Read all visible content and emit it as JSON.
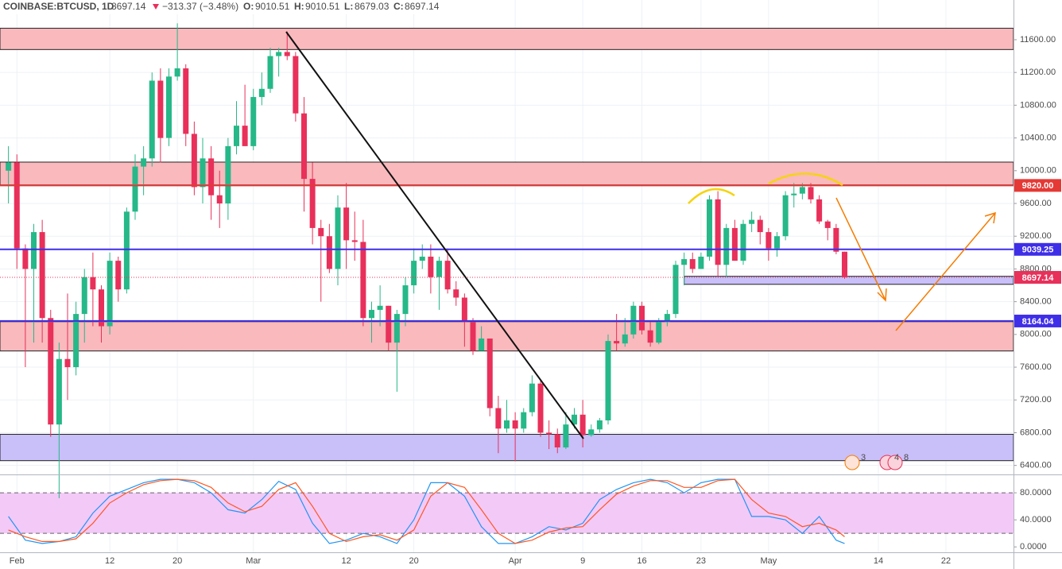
{
  "header": {
    "symbol": "COINBASE:BTCUSD, 1D",
    "price": "8697.14",
    "change": "−313.37 (−3.48%)",
    "o_label": "O:",
    "open": "9010.51",
    "h_label": "H:",
    "high": "9010.51",
    "l_label": "L:",
    "low": "8679.03",
    "c_label": "C:",
    "close": "8697.14"
  },
  "events": [
    {
      "label": "3"
    },
    {
      "label": "4"
    },
    {
      "label": "8"
    }
  ],
  "chart_data": [
    {
      "type": "candlestick",
      "up_color": "#26b888",
      "down_color": "#e8305a",
      "x": [
        "Jan 31",
        "Feb 1",
        "Feb 2",
        "Feb 3",
        "Feb 4",
        "Feb 5",
        "Feb 6",
        "Feb 7",
        "Feb 8",
        "Feb 9",
        "Feb 10",
        "Feb 11",
        "Feb 12",
        "Feb 13",
        "Feb 14",
        "Feb 15",
        "Feb 16",
        "Feb 17",
        "Feb 18",
        "Feb 19",
        "Feb 20",
        "Feb 21",
        "Feb 22",
        "Feb 23",
        "Feb 24",
        "Feb 25",
        "Feb 26",
        "Feb 27",
        "Feb 28",
        "Mar 1",
        "Mar 2",
        "Mar 3",
        "Mar 4",
        "Mar 5",
        "Mar 6",
        "Mar 7",
        "Mar 8",
        "Mar 9",
        "Mar 10",
        "Mar 11",
        "Mar 12",
        "Mar 13",
        "Mar 14",
        "Mar 15",
        "Mar 16",
        "Mar 17",
        "Mar 18",
        "Mar 19",
        "Mar 20",
        "Mar 21",
        "Mar 22",
        "Mar 23",
        "Mar 24",
        "Mar 25",
        "Mar 26",
        "Mar 27",
        "Mar 28",
        "Mar 29",
        "Mar 30",
        "Mar 31",
        "Apr 1",
        "Apr 2",
        "Apr 3",
        "Apr 4",
        "Apr 5",
        "Apr 6",
        "Apr 7",
        "Apr 8",
        "Apr 9",
        "Apr 10",
        "Apr 11",
        "Apr 12",
        "Apr 13",
        "Apr 14",
        "Apr 15",
        "Apr 16",
        "Apr 17",
        "Apr 18",
        "Apr 19",
        "Apr 20",
        "Apr 21",
        "Apr 22",
        "Apr 23",
        "Apr 24",
        "Apr 25",
        "Apr 26",
        "Apr 27",
        "Apr 28",
        "Apr 29",
        "Apr 30",
        "May 1",
        "May 2",
        "May 3",
        "May 4",
        "May 5",
        "May 6",
        "May 7",
        "May 8",
        "May 9",
        "May 10"
      ],
      "open": [
        10000,
        10100,
        9050,
        8800,
        9250,
        8200,
        6900,
        7700,
        7600,
        8250,
        8700,
        8550,
        8100,
        8900,
        8550,
        9500,
        10050,
        10150,
        11100,
        10400,
        11150,
        11250,
        10450,
        9800,
        10150,
        9700,
        9600,
        10300,
        10550,
        10300,
        10900,
        11000,
        11400,
        11450,
        11400,
        10700,
        9900,
        9300,
        9200,
        8800,
        9550,
        9150,
        9130,
        8200,
        8300,
        8350,
        7900,
        8250,
        8600,
        8900,
        8950,
        8700,
        8900,
        8550,
        8450,
        8150,
        7800,
        7950,
        7100,
        6850,
        6950,
        6850,
        7050,
        7400,
        6800,
        6780,
        6620,
        6900,
        7020,
        6770,
        6840,
        6950,
        7920,
        7890,
        8000,
        8350,
        8050,
        7900,
        8150,
        8250,
        8850,
        8920,
        8800,
        8950,
        9650,
        8850,
        9300,
        8900,
        9350,
        9400,
        9250,
        9050,
        9200,
        9700,
        9720,
        9800,
        9650,
        9380,
        9300,
        9010.51
      ],
      "high": [
        10300,
        10200,
        9100,
        9350,
        9400,
        8300,
        7900,
        8500,
        8400,
        8800,
        9000,
        8600,
        9000,
        8950,
        9550,
        10200,
        10300,
        11200,
        11250,
        11250,
        11800,
        11300,
        10600,
        10400,
        10300,
        10000,
        10400,
        10850,
        11050,
        11000,
        11200,
        11500,
        11500,
        11700,
        11450,
        10900,
        10100,
        9400,
        9350,
        9700,
        9850,
        9500,
        9400,
        8400,
        8600,
        8350,
        8300,
        8700,
        9050,
        9100,
        9100,
        8950,
        9050,
        8650,
        8500,
        8200,
        8100,
        7950,
        7250,
        7200,
        7050,
        7100,
        7500,
        7450,
        6950,
        6850,
        7050,
        7100,
        7200,
        6900,
        6980,
        8000,
        8250,
        8200,
        8400,
        8400,
        8150,
        8200,
        8300,
        8900,
        9000,
        9000,
        9000,
        9700,
        9750,
        9350,
        9400,
        9400,
        9500,
        9450,
        9300,
        9250,
        9750,
        9850,
        9850,
        9850,
        9700,
        9400,
        9350,
        9010.51
      ],
      "low": [
        9600,
        8800,
        7600,
        7900,
        7900,
        6750,
        6000,
        7200,
        7500,
        7900,
        8100,
        7900,
        8000,
        8400,
        8500,
        9400,
        9700,
        10050,
        10100,
        10300,
        11100,
        10300,
        9700,
        9600,
        9400,
        9300,
        9400,
        10200,
        10300,
        10250,
        10800,
        10950,
        11150,
        11350,
        10600,
        9500,
        9100,
        8400,
        8750,
        8600,
        8800,
        8900,
        8100,
        7900,
        8100,
        7800,
        7300,
        8100,
        8500,
        8800,
        8500,
        8300,
        8500,
        8350,
        7850,
        7750,
        7800,
        7000,
        6550,
        6800,
        6450,
        6800,
        7000,
        6750,
        6600,
        6550,
        6600,
        6850,
        6620,
        6750,
        6800,
        6900,
        7800,
        7850,
        7950,
        8000,
        7850,
        7880,
        8100,
        8200,
        8600,
        8750,
        8800,
        8900,
        8700,
        8700,
        8900,
        8850,
        9250,
        9100,
        8900,
        8950,
        9150,
        9550,
        9650,
        9600,
        9350,
        9150,
        8980,
        8679.03
      ],
      "close": [
        10100,
        9050,
        8800,
        9250,
        8200,
        6900,
        7700,
        7600,
        8250,
        8700,
        8550,
        8100,
        8900,
        8550,
        9500,
        10050,
        10150,
        11100,
        10400,
        11150,
        11250,
        10450,
        9800,
        10150,
        9700,
        9600,
        10300,
        10550,
        10300,
        10900,
        11000,
        11400,
        11450,
        11400,
        10700,
        9900,
        9300,
        9200,
        8800,
        9550,
        9150,
        9130,
        8200,
        8300,
        8350,
        7900,
        8250,
        8600,
        8900,
        8950,
        8700,
        8900,
        8550,
        8450,
        8150,
        7800,
        7950,
        7100,
        6850,
        6950,
        6850,
        7050,
        7400,
        6800,
        6780,
        6620,
        6900,
        7020,
        6770,
        6840,
        6950,
        7920,
        7890,
        8000,
        8350,
        8050,
        7900,
        8150,
        8250,
        8850,
        8920,
        8800,
        8950,
        9650,
        8850,
        9300,
        8900,
        9350,
        9400,
        9250,
        9050,
        9200,
        9700,
        9720,
        9800,
        9650,
        9380,
        9300,
        9010.51,
        8697.14
      ],
      "xlim": [
        "Jan 30",
        "May 30"
      ],
      "xticks": [
        {
          "value": "Feb 1",
          "label": "Feb"
        },
        {
          "value": "Feb 12",
          "label": "12"
        },
        {
          "value": "Feb 20",
          "label": "20"
        },
        {
          "value": "Mar 1",
          "label": "Mar"
        },
        {
          "value": "Mar 12",
          "label": "12"
        },
        {
          "value": "Mar 20",
          "label": "20"
        },
        {
          "value": "Apr 1",
          "label": "Apr"
        },
        {
          "value": "Apr 9",
          "label": "9"
        },
        {
          "value": "Apr 16",
          "label": "16"
        },
        {
          "value": "Apr 23",
          "label": "23"
        },
        {
          "value": "May 1",
          "label": "May"
        },
        {
          "value": "May 14",
          "label": "14"
        },
        {
          "value": "May 22",
          "label": "22"
        }
      ],
      "ylim": [
        6290,
        12085
      ],
      "yticks": [
        {
          "value": 6400,
          "label": "6400.00"
        },
        {
          "value": 6800,
          "label": "6800.00"
        },
        {
          "value": 7200,
          "label": "7200.00"
        },
        {
          "value": 7600,
          "label": "7600.00"
        },
        {
          "value": 8000,
          "label": "8000.00"
        },
        {
          "value": 8400,
          "label": "8400.00"
        },
        {
          "value": 8800,
          "label": "8800.00"
        },
        {
          "value": 9200,
          "label": "9200.00"
        },
        {
          "value": 9600,
          "label": "9600.00"
        },
        {
          "value": 10000,
          "label": "10000.00"
        },
        {
          "value": 10400,
          "label": "10400.00"
        },
        {
          "value": 10800,
          "label": "10800.00"
        },
        {
          "value": 11200,
          "label": "11200.00"
        },
        {
          "value": 11600,
          "label": "11600.00"
        }
      ],
      "grid": true,
      "zones": [
        {
          "from": 11480,
          "to": 11740,
          "color": "#f9b9bd"
        },
        {
          "from": 9826,
          "to": 10105,
          "color": "#f9b9bd"
        },
        {
          "from": 7798,
          "to": 8156,
          "color": "#f9b9bd"
        },
        {
          "from": 6458,
          "to": 6780,
          "color": "#c9bff9"
        },
        {
          "from": 8612,
          "to": 8710,
          "color": "#c9bff9",
          "start": "Apr 21"
        }
      ],
      "hlines": [
        {
          "value": 9820,
          "label": "9820.00",
          "color": "#e53935",
          "style": "solid"
        },
        {
          "value": 9039.25,
          "label": "9039.25",
          "color": "#3f2ee8",
          "style": "solid"
        },
        {
          "value": 8697.14,
          "label": "8697.14",
          "color": "#e8305a",
          "style": "dotted"
        },
        {
          "value": 8164.04,
          "label": "8164.04",
          "color": "#3f2ee8",
          "style": "solid"
        }
      ]
    },
    {
      "type": "line",
      "x": [
        "Jan 31",
        "Feb 2",
        "Feb 4",
        "Feb 6",
        "Feb 8",
        "Feb 10",
        "Feb 12",
        "Feb 14",
        "Feb 16",
        "Feb 18",
        "Feb 20",
        "Feb 22",
        "Feb 24",
        "Feb 26",
        "Feb 28",
        "Mar 2",
        "Mar 4",
        "Mar 6",
        "Mar 8",
        "Mar 10",
        "Mar 12",
        "Mar 14",
        "Mar 16",
        "Mar 18",
        "Mar 20",
        "Mar 22",
        "Mar 24",
        "Mar 26",
        "Mar 28",
        "Mar 30",
        "Apr 1",
        "Apr 3",
        "Apr 5",
        "Apr 7",
        "Apr 9",
        "Apr 11",
        "Apr 13",
        "Apr 15",
        "Apr 17",
        "Apr 19",
        "Apr 21",
        "Apr 23",
        "Apr 25",
        "Apr 27",
        "Apr 29",
        "May 1",
        "May 3",
        "May 5",
        "May 7",
        "May 9",
        "May 10"
      ],
      "series": [
        {
          "color": "#2196f3",
          "values": [
            45,
            10,
            5,
            8,
            15,
            50,
            75,
            85,
            95,
            100,
            100,
            95,
            80,
            55,
            50,
            70,
            97,
            85,
            35,
            5,
            10,
            20,
            15,
            5,
            40,
            95,
            95,
            75,
            30,
            5,
            5,
            15,
            30,
            25,
            35,
            70,
            85,
            95,
            100,
            95,
            80,
            95,
            100,
            100,
            45,
            45,
            40,
            20,
            45,
            10,
            5
          ]
        },
        {
          "color": "#ff5722",
          "values": [
            25,
            15,
            8,
            8,
            12,
            35,
            65,
            80,
            92,
            98,
            100,
            98,
            88,
            65,
            52,
            60,
            85,
            95,
            60,
            20,
            8,
            15,
            18,
            10,
            25,
            75,
            95,
            88,
            55,
            20,
            5,
            10,
            22,
            28,
            30,
            55,
            78,
            90,
            98,
            98,
            88,
            88,
            98,
            100,
            70,
            50,
            45,
            30,
            35,
            25,
            15
          ]
        }
      ],
      "ylim": [
        -8,
        106
      ],
      "yticks": [
        {
          "value": 0,
          "label": "0.0000"
        },
        {
          "value": 40,
          "label": "40.0000"
        },
        {
          "value": 80,
          "label": "80.0000"
        }
      ],
      "band": [
        20,
        80
      ],
      "band_color": "#f3c9f8"
    }
  ]
}
